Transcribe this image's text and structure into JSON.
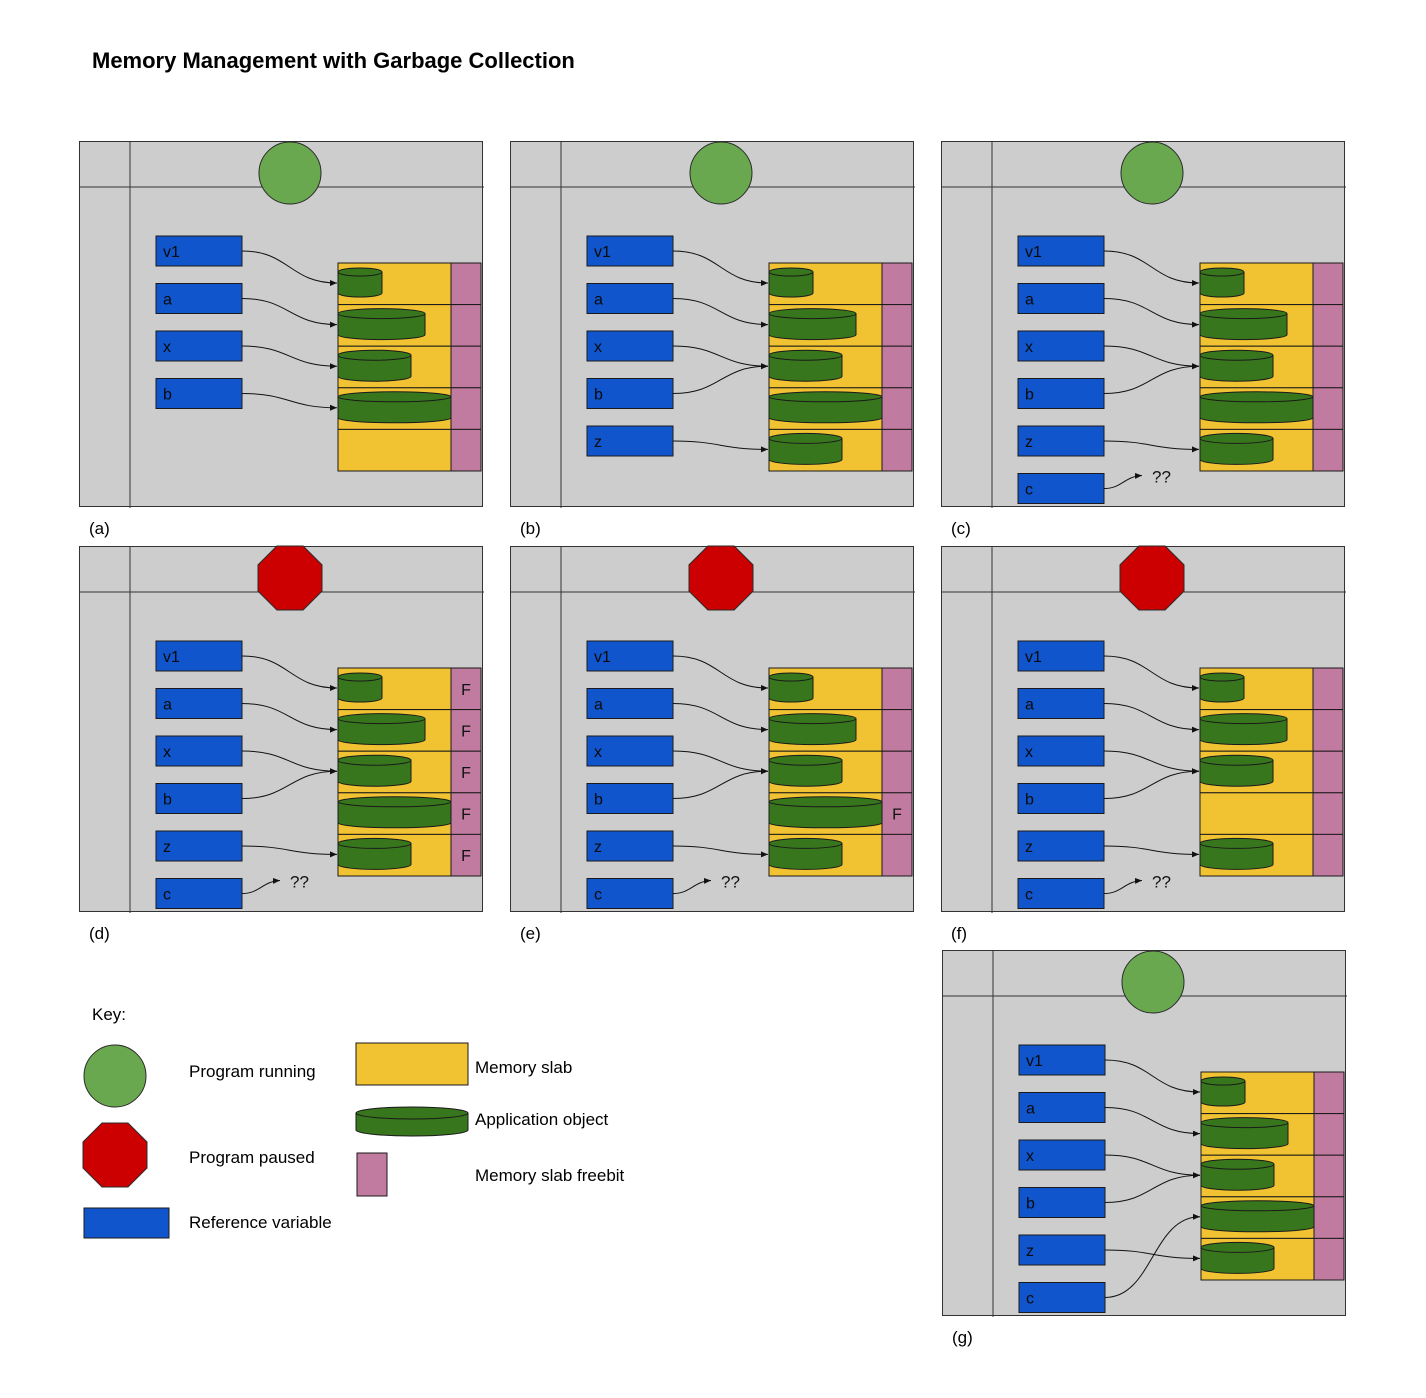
{
  "title": "Memory Management with Garbage Collection",
  "colors": {
    "panel_bg": "#cdcdcd",
    "running": "#6aa84f",
    "paused": "#cc0000",
    "reference": "#1155cc",
    "slab": "#f1c232",
    "object": "#38761d",
    "freebit": "#c27ba0"
  },
  "panels": [
    {
      "caption": "(a)",
      "state": "running",
      "variables": [
        "v1",
        "a",
        "x",
        "b"
      ],
      "slots": [
        {
          "object": "small",
          "flag": ""
        },
        {
          "object": "large",
          "flag": ""
        },
        {
          "object": "medium",
          "flag": ""
        },
        {
          "object": "xlarge",
          "flag": ""
        },
        {
          "object": "",
          "flag": ""
        }
      ],
      "links": [
        [
          0,
          0
        ],
        [
          1,
          1
        ],
        [
          2,
          2
        ],
        [
          3,
          3
        ]
      ],
      "dangling": []
    },
    {
      "caption": "(b)",
      "state": "running",
      "variables": [
        "v1",
        "a",
        "x",
        "b",
        "z"
      ],
      "slots": [
        {
          "object": "small",
          "flag": ""
        },
        {
          "object": "large",
          "flag": ""
        },
        {
          "object": "medium",
          "flag": ""
        },
        {
          "object": "xlarge",
          "flag": ""
        },
        {
          "object": "medium",
          "flag": ""
        }
      ],
      "links": [
        [
          0,
          0
        ],
        [
          1,
          1
        ],
        [
          2,
          2
        ],
        [
          3,
          2
        ],
        [
          4,
          4
        ]
      ],
      "dangling": []
    },
    {
      "caption": "(c)",
      "state": "running",
      "variables": [
        "v1",
        "a",
        "x",
        "b",
        "z",
        "c"
      ],
      "slots": [
        {
          "object": "small",
          "flag": ""
        },
        {
          "object": "large",
          "flag": ""
        },
        {
          "object": "medium",
          "flag": ""
        },
        {
          "object": "xlarge",
          "flag": ""
        },
        {
          "object": "medium",
          "flag": ""
        }
      ],
      "links": [
        [
          0,
          0
        ],
        [
          1,
          1
        ],
        [
          2,
          2
        ],
        [
          3,
          2
        ],
        [
          4,
          4
        ]
      ],
      "dangling": [
        5
      ],
      "dangling_label": "??"
    },
    {
      "caption": "(d)",
      "state": "paused",
      "variables": [
        "v1",
        "a",
        "x",
        "b",
        "z",
        "c"
      ],
      "slots": [
        {
          "object": "small",
          "flag": "F"
        },
        {
          "object": "large",
          "flag": "F"
        },
        {
          "object": "medium",
          "flag": "F"
        },
        {
          "object": "xlarge",
          "flag": "F"
        },
        {
          "object": "medium",
          "flag": "F"
        }
      ],
      "links": [
        [
          0,
          0
        ],
        [
          1,
          1
        ],
        [
          2,
          2
        ],
        [
          3,
          2
        ],
        [
          4,
          4
        ]
      ],
      "dangling": [
        5
      ],
      "dangling_label": "??"
    },
    {
      "caption": "(e)",
      "state": "paused",
      "variables": [
        "v1",
        "a",
        "x",
        "b",
        "z",
        "c"
      ],
      "slots": [
        {
          "object": "small",
          "flag": ""
        },
        {
          "object": "large",
          "flag": ""
        },
        {
          "object": "medium",
          "flag": ""
        },
        {
          "object": "xlarge",
          "flag": "F"
        },
        {
          "object": "medium",
          "flag": ""
        }
      ],
      "links": [
        [
          0,
          0
        ],
        [
          1,
          1
        ],
        [
          2,
          2
        ],
        [
          3,
          2
        ],
        [
          4,
          4
        ]
      ],
      "dangling": [
        5
      ],
      "dangling_label": "??"
    },
    {
      "caption": "(f)",
      "state": "paused",
      "variables": [
        "v1",
        "a",
        "x",
        "b",
        "z",
        "c"
      ],
      "slots": [
        {
          "object": "small",
          "flag": ""
        },
        {
          "object": "large",
          "flag": ""
        },
        {
          "object": "medium",
          "flag": ""
        },
        {
          "object": "",
          "flag": ""
        },
        {
          "object": "medium",
          "flag": ""
        }
      ],
      "links": [
        [
          0,
          0
        ],
        [
          1,
          1
        ],
        [
          2,
          2
        ],
        [
          3,
          2
        ],
        [
          4,
          4
        ]
      ],
      "dangling": [
        5
      ],
      "dangling_label": "??"
    },
    {
      "caption": "(g)",
      "state": "running",
      "variables": [
        "v1",
        "a",
        "x",
        "b",
        "z",
        "c"
      ],
      "slots": [
        {
          "object": "small",
          "flag": ""
        },
        {
          "object": "large",
          "flag": ""
        },
        {
          "object": "medium",
          "flag": ""
        },
        {
          "object": "xlarge",
          "flag": ""
        },
        {
          "object": "medium",
          "flag": ""
        }
      ],
      "links": [
        [
          0,
          0
        ],
        [
          1,
          1
        ],
        [
          2,
          2
        ],
        [
          3,
          2
        ],
        [
          4,
          4
        ],
        [
          5,
          3
        ]
      ],
      "dangling": []
    }
  ],
  "key": {
    "heading": "Key:",
    "running_label": "Program running",
    "paused_label": "Program paused",
    "reference_label": "Reference variable",
    "slab_label": "Memory slab",
    "object_label": "Application object",
    "freebit_label": "Memory slab freebit"
  }
}
